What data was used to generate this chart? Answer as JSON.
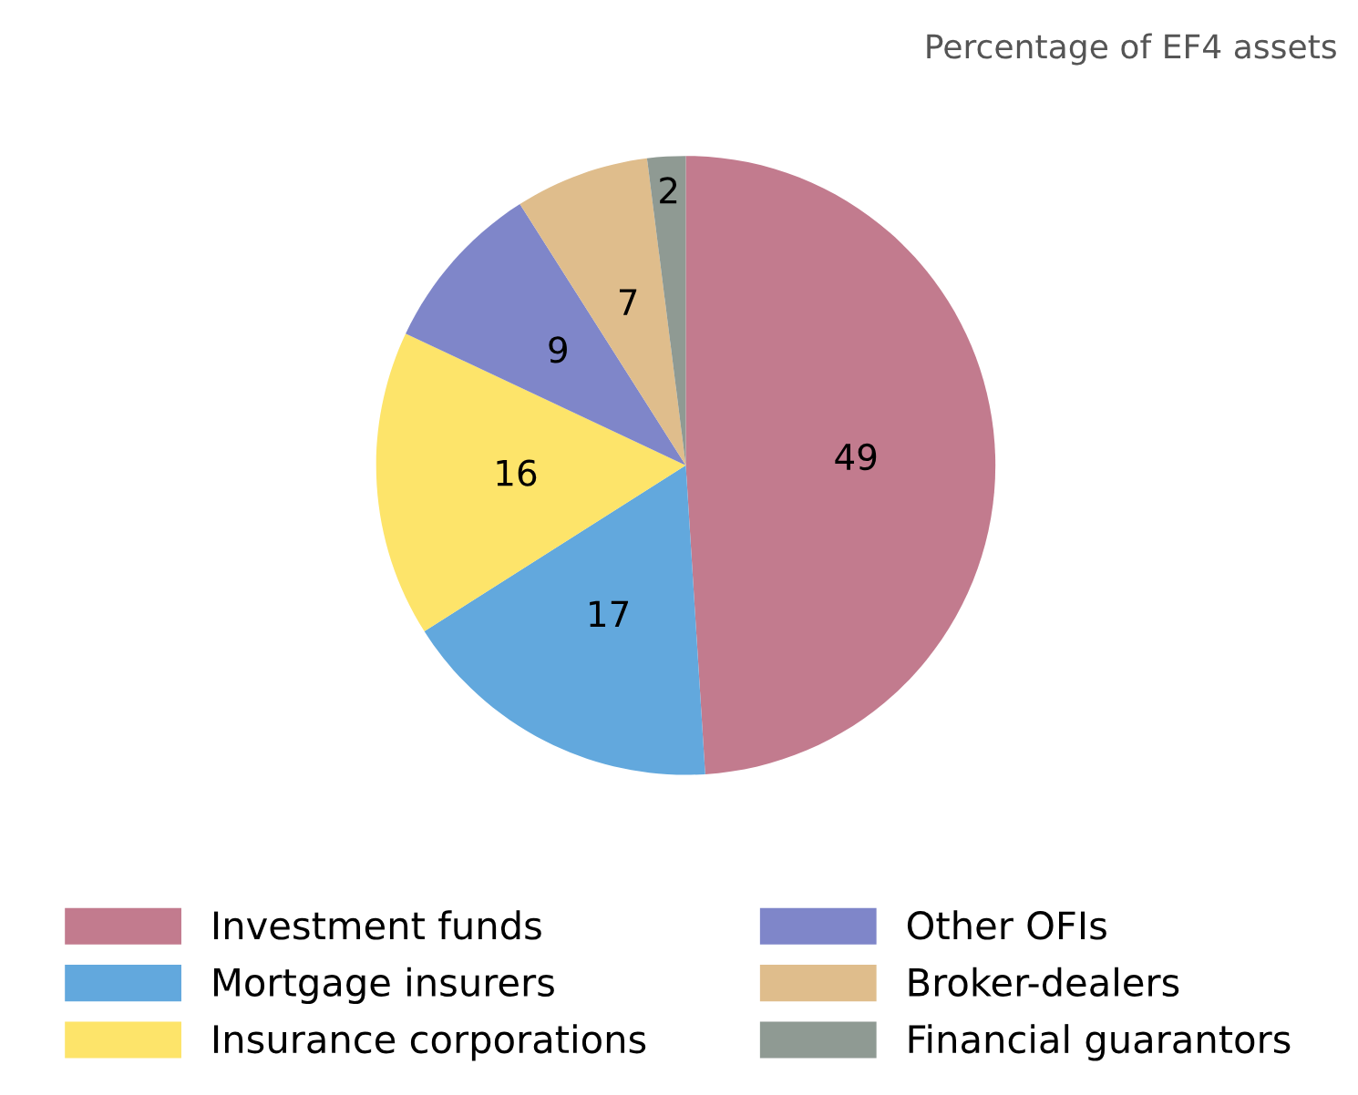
{
  "chart_data": {
    "type": "pie",
    "subtitle": "Percentage of EF4 assets",
    "categories": [
      "Investment funds",
      "Mortgage insurers",
      "Insurance corporations",
      "Other OFIs",
      "Broker-dealers",
      "Financial guarantors"
    ],
    "values": [
      49,
      17,
      16,
      9,
      7,
      2
    ],
    "colors": [
      "#c27b8e",
      "#62a8dd",
      "#fde46a",
      "#7f86c9",
      "#dfbd8c",
      "#8f9a93"
    ],
    "data_labels": true,
    "legend": "bottom"
  }
}
